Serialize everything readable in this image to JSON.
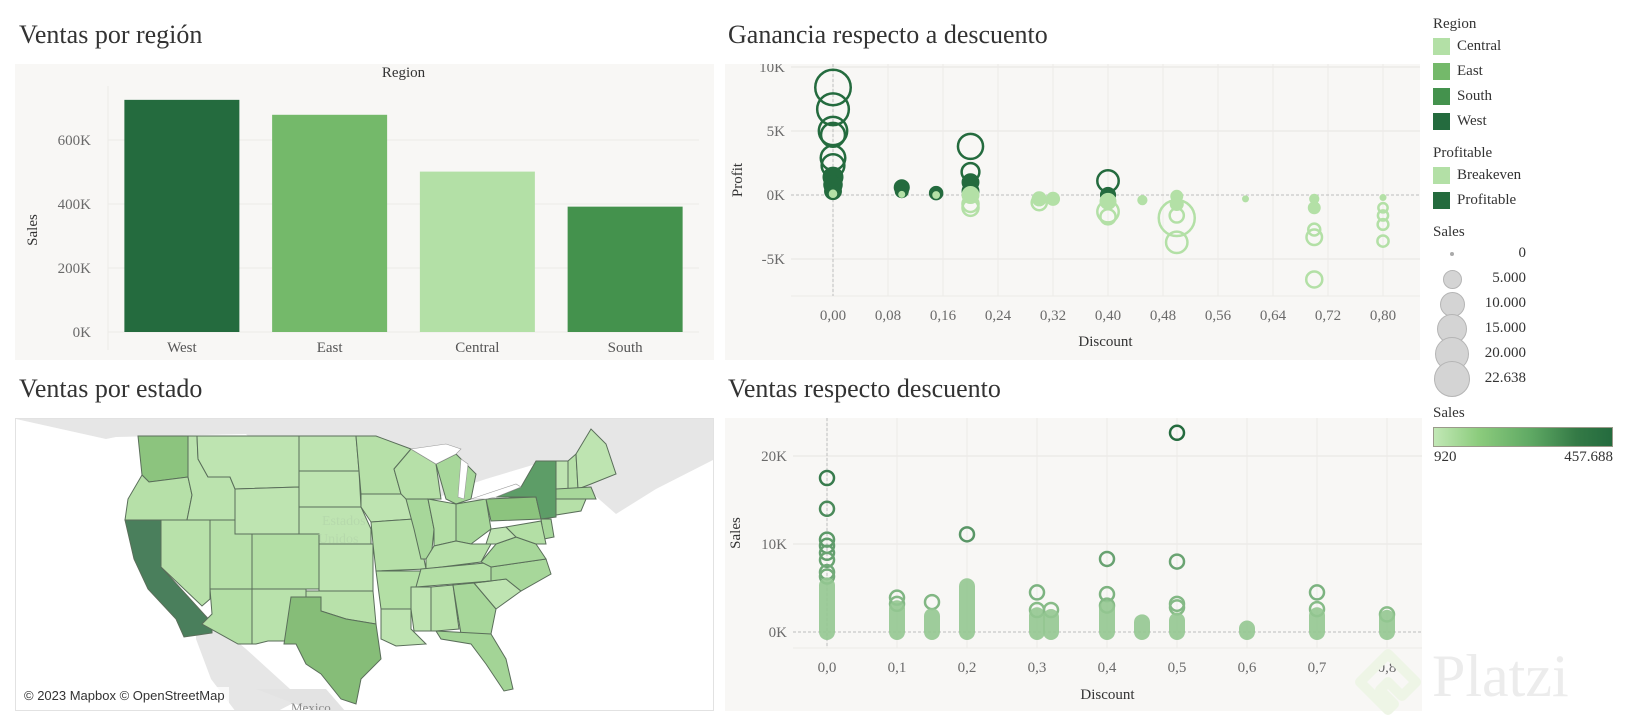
{
  "dashboard": {
    "titles": {
      "bar": "Ventas por región",
      "scatter_profit": "Ganancia respecto a descuento",
      "map": "Ventas por estado",
      "scatter_sales": "Ventas respecto descuento"
    }
  },
  "colors": {
    "panel_bg": "#f8f7f5",
    "Central": "#b3e0a6",
    "East": "#74b96a",
    "South": "#44924d",
    "West": "#246b3e",
    "Breakeven": "#b3e0a6",
    "Profitable": "#246b3e",
    "gradient_start": "#b9e4ad",
    "gradient_end": "#246b3e",
    "grid": "#ecebe8",
    "zero_line": "#bdbdbd",
    "tick_text": "#6a6a6a"
  },
  "legend": {
    "region": {
      "title": "Region",
      "items": [
        {
          "label": "Central",
          "color": "#b3e0a6"
        },
        {
          "label": "East",
          "color": "#74b96a"
        },
        {
          "label": "South",
          "color": "#44924d"
        },
        {
          "label": "West",
          "color": "#246b3e"
        }
      ]
    },
    "profitable": {
      "title": "Profitable",
      "items": [
        {
          "label": "Breakeven",
          "color": "#b3e0a6"
        },
        {
          "label": "Profitable",
          "color": "#246b3e"
        }
      ]
    },
    "size": {
      "title": "Sales",
      "items": [
        {
          "label": "0",
          "d": 4
        },
        {
          "label": "5.000",
          "d": 19
        },
        {
          "label": "10.000",
          "d": 25
        },
        {
          "label": "15.000",
          "d": 30
        },
        {
          "label": "20.000",
          "d": 34
        },
        {
          "label": "22.638",
          "d": 36
        }
      ]
    },
    "color": {
      "title": "Sales",
      "min_label": "920",
      "max_label": "457.688"
    }
  },
  "map": {
    "attribution": "© 2023 Mapbox © OpenStreetMap",
    "country_label_1": "Estados",
    "country_label_2": "Unidos",
    "neighbor_label": "Mexico"
  },
  "watermark": {
    "text": "Platzi"
  },
  "chart_data": [
    {
      "type": "bar",
      "title": "Ventas por región",
      "header": "Region",
      "categories": [
        "West",
        "East",
        "Central",
        "South"
      ],
      "values": [
        725458,
        678781,
        501240,
        391722
      ],
      "colors": [
        "#246b3e",
        "#74b96a",
        "#b3e0a6",
        "#44924d"
      ],
      "xlabel": "",
      "ylabel": "Sales",
      "ylim": [
        0,
        760000
      ],
      "yticks": [
        0,
        200000,
        400000,
        600000
      ],
      "ytick_labels": [
        "0K",
        "200K",
        "400K",
        "600K"
      ],
      "grid": true
    },
    {
      "type": "scatter",
      "title": "Ganancia respecto a descuento",
      "xlabel": "Discount",
      "ylabel": "Profit",
      "xlim": [
        -0.061,
        0.853
      ],
      "ylim": [
        -7900,
        10800
      ],
      "xticks": [
        0,
        0.08,
        0.16,
        0.24,
        0.32,
        0.4,
        0.48,
        0.56,
        0.64,
        0.72,
        0.8
      ],
      "xtick_labels": [
        "0,00",
        "0,08",
        "0,16",
        "0,24",
        "0,32",
        "0,40",
        "0,48",
        "0,56",
        "0,64",
        "0,72",
        "0,80"
      ],
      "yticks": [
        -5000,
        0,
        5000,
        10000
      ],
      "ytick_labels": [
        "-5K",
        "0K",
        "5K",
        "10K"
      ],
      "size_encoding": "Sales",
      "color_encoding": "Profitable",
      "points": [
        {
          "x": 0.0,
          "y": 8400,
          "s": 22000,
          "c": "Profitable",
          "fill": false
        },
        {
          "x": 0.0,
          "y": 6700,
          "s": 17500,
          "c": "Profitable",
          "fill": false
        },
        {
          "x": 0.0,
          "y": 5000,
          "s": 14000,
          "c": "Profitable",
          "fill": false
        },
        {
          "x": 0.0,
          "y": 4700,
          "s": 10000,
          "c": "Profitable",
          "fill": false
        },
        {
          "x": 0.0,
          "y": 2900,
          "s": 10500,
          "c": "Profitable",
          "fill": false
        },
        {
          "x": 0.0,
          "y": 2300,
          "s": 9000,
          "c": "Profitable",
          "fill": false
        },
        {
          "x": 0.0,
          "y": 1400,
          "s": 7000,
          "c": "Profitable",
          "fill": true
        },
        {
          "x": 0.0,
          "y": 800,
          "s": 6000,
          "c": "Profitable",
          "fill": true
        },
        {
          "x": 0.0,
          "y": 300,
          "s": 5000,
          "c": "Profitable",
          "fill": true
        },
        {
          "x": 0.0,
          "y": 100,
          "s": 1000,
          "c": "Breakeven",
          "fill": true
        },
        {
          "x": 0.1,
          "y": 600,
          "s": 4000,
          "c": "Profitable",
          "fill": true
        },
        {
          "x": 0.1,
          "y": 300,
          "s": 3000,
          "c": "Profitable",
          "fill": true
        },
        {
          "x": 0.1,
          "y": 50,
          "s": 500,
          "c": "Breakeven",
          "fill": true
        },
        {
          "x": 0.15,
          "y": 150,
          "s": 3200,
          "c": "Profitable",
          "fill": true
        },
        {
          "x": 0.15,
          "y": 0,
          "s": 800,
          "c": "Breakeven",
          "fill": true
        },
        {
          "x": 0.2,
          "y": 3800,
          "s": 11000,
          "c": "Profitable",
          "fill": false
        },
        {
          "x": 0.2,
          "y": 1800,
          "s": 5500,
          "c": "Profitable",
          "fill": false
        },
        {
          "x": 0.2,
          "y": 1000,
          "s": 5000,
          "c": "Profitable",
          "fill": true
        },
        {
          "x": 0.2,
          "y": 300,
          "s": 5000,
          "c": "Profitable",
          "fill": true
        },
        {
          "x": 0.2,
          "y": 0,
          "s": 5000,
          "c": "Breakeven",
          "fill": true
        },
        {
          "x": 0.2,
          "y": -700,
          "s": 4500,
          "c": "Breakeven",
          "fill": false
        },
        {
          "x": 0.2,
          "y": -1000,
          "s": 4500,
          "c": "Breakeven",
          "fill": false
        },
        {
          "x": 0.3,
          "y": -300,
          "s": 3500,
          "c": "Breakeven",
          "fill": true
        },
        {
          "x": 0.3,
          "y": -600,
          "s": 4000,
          "c": "Breakeven",
          "fill": false
        },
        {
          "x": 0.32,
          "y": -300,
          "s": 3000,
          "c": "Breakeven",
          "fill": true
        },
        {
          "x": 0.4,
          "y": 1100,
          "s": 8000,
          "c": "Profitable",
          "fill": false
        },
        {
          "x": 0.4,
          "y": 0,
          "s": 4000,
          "c": "Profitable",
          "fill": true
        },
        {
          "x": 0.4,
          "y": -500,
          "s": 4500,
          "c": "Breakeven",
          "fill": true
        },
        {
          "x": 0.4,
          "y": -1300,
          "s": 8000,
          "c": "Breakeven",
          "fill": false
        },
        {
          "x": 0.4,
          "y": -1700,
          "s": 4000,
          "c": "Breakeven",
          "fill": false
        },
        {
          "x": 0.45,
          "y": -400,
          "s": 1500,
          "c": "Breakeven",
          "fill": true
        },
        {
          "x": 0.5,
          "y": -100,
          "s": 2500,
          "c": "Breakeven",
          "fill": true
        },
        {
          "x": 0.5,
          "y": -700,
          "s": 3000,
          "c": "Breakeven",
          "fill": true
        },
        {
          "x": 0.5,
          "y": -1800,
          "s": 22638,
          "c": "Breakeven",
          "fill": false
        },
        {
          "x": 0.5,
          "y": -1600,
          "s": 3500,
          "c": "Breakeven",
          "fill": false
        },
        {
          "x": 0.5,
          "y": -3700,
          "s": 8000,
          "c": "Breakeven",
          "fill": false
        },
        {
          "x": 0.6,
          "y": -300,
          "s": 500,
          "c": "Breakeven",
          "fill": true
        },
        {
          "x": 0.7,
          "y": -300,
          "s": 1500,
          "c": "Breakeven",
          "fill": true
        },
        {
          "x": 0.7,
          "y": -1000,
          "s": 2500,
          "c": "Breakeven",
          "fill": true
        },
        {
          "x": 0.7,
          "y": -2700,
          "s": 2500,
          "c": "Breakeven",
          "fill": false
        },
        {
          "x": 0.7,
          "y": -3300,
          "s": 4200,
          "c": "Breakeven",
          "fill": false
        },
        {
          "x": 0.7,
          "y": -6600,
          "s": 4500,
          "c": "Breakeven",
          "fill": false
        },
        {
          "x": 0.8,
          "y": -200,
          "s": 500,
          "c": "Breakeven",
          "fill": true
        },
        {
          "x": 0.8,
          "y": -1000,
          "s": 1500,
          "c": "Breakeven",
          "fill": false
        },
        {
          "x": 0.8,
          "y": -1600,
          "s": 1800,
          "c": "Breakeven",
          "fill": false
        },
        {
          "x": 0.8,
          "y": -2300,
          "s": 2000,
          "c": "Breakeven",
          "fill": false
        },
        {
          "x": 0.8,
          "y": -3600,
          "s": 2200,
          "c": "Breakeven",
          "fill": false
        }
      ]
    },
    {
      "type": "scatter",
      "title": "Ventas respecto descuento",
      "xlabel": "Discount",
      "ylabel": "Sales",
      "xlim": [
        -0.048,
        0.85
      ],
      "ylim": [
        -1800,
        24300
      ],
      "xticks": [
        0,
        0.1,
        0.2,
        0.3,
        0.4,
        0.5,
        0.6,
        0.7,
        0.8
      ],
      "xtick_labels": [
        "0,0",
        "0,1",
        "0,2",
        "0,3",
        "0,4",
        "0,5",
        "0,6",
        "0,7",
        "0,8"
      ],
      "yticks": [
        0,
        10000,
        20000
      ],
      "ytick_labels": [
        "0K",
        "10K",
        "20K"
      ],
      "color_encoding": "Sales",
      "points": [
        {
          "x": 0.0,
          "y": 17500,
          "fill": false
        },
        {
          "x": 0.0,
          "y": 14000,
          "fill": false
        },
        {
          "x": 0.0,
          "y": 10500,
          "fill": false
        },
        {
          "x": 0.0,
          "y": 9800,
          "fill": false
        },
        {
          "x": 0.0,
          "y": 9000,
          "fill": false
        },
        {
          "x": 0.0,
          "y": 8200,
          "fill": false
        },
        {
          "x": 0.0,
          "y": 6800,
          "fill": false
        },
        {
          "x": 0.0,
          "y": 6300,
          "fill": false
        },
        {
          "x": 0.0,
          "y": 2600,
          "fill": true,
          "range": [
            0,
            5300
          ]
        },
        {
          "x": 0.1,
          "y": 3900,
          "fill": false
        },
        {
          "x": 0.1,
          "y": 3200,
          "fill": false
        },
        {
          "x": 0.1,
          "y": 1400,
          "fill": true,
          "range": [
            0,
            2700
          ]
        },
        {
          "x": 0.15,
          "y": 3400,
          "fill": false
        },
        {
          "x": 0.15,
          "y": 900,
          "fill": true,
          "range": [
            0,
            1800
          ]
        },
        {
          "x": 0.2,
          "y": 11100,
          "fill": false
        },
        {
          "x": 0.2,
          "y": 2600,
          "fill": true,
          "range": [
            0,
            5200
          ]
        },
        {
          "x": 0.3,
          "y": 4500,
          "fill": false
        },
        {
          "x": 0.3,
          "y": 2500,
          "fill": false
        },
        {
          "x": 0.3,
          "y": 900,
          "fill": true,
          "range": [
            0,
            1900
          ]
        },
        {
          "x": 0.32,
          "y": 2500,
          "fill": false
        },
        {
          "x": 0.32,
          "y": 900,
          "fill": true,
          "range": [
            0,
            1700
          ]
        },
        {
          "x": 0.4,
          "y": 8300,
          "fill": false
        },
        {
          "x": 0.4,
          "y": 4300,
          "fill": false
        },
        {
          "x": 0.4,
          "y": 3000,
          "fill": false
        },
        {
          "x": 0.4,
          "y": 1300,
          "fill": true,
          "range": [
            0,
            2700
          ]
        },
        {
          "x": 0.45,
          "y": 600,
          "fill": true,
          "range": [
            0,
            1100
          ]
        },
        {
          "x": 0.5,
          "y": 22638,
          "fill": false
        },
        {
          "x": 0.5,
          "y": 8000,
          "fill": false
        },
        {
          "x": 0.5,
          "y": 3200,
          "fill": false
        },
        {
          "x": 0.5,
          "y": 2800,
          "fill": false
        },
        {
          "x": 0.5,
          "y": 700,
          "fill": true,
          "range": [
            0,
            1300
          ]
        },
        {
          "x": 0.6,
          "y": 200,
          "fill": true,
          "range": [
            0,
            400
          ]
        },
        {
          "x": 0.7,
          "y": 4500,
          "fill": false
        },
        {
          "x": 0.7,
          "y": 2600,
          "fill": false
        },
        {
          "x": 0.7,
          "y": 900,
          "fill": true,
          "range": [
            0,
            1900
          ]
        },
        {
          "x": 0.8,
          "y": 2000,
          "fill": false
        },
        {
          "x": 0.8,
          "y": 800,
          "fill": true,
          "range": [
            0,
            1600
          ]
        }
      ]
    }
  ]
}
